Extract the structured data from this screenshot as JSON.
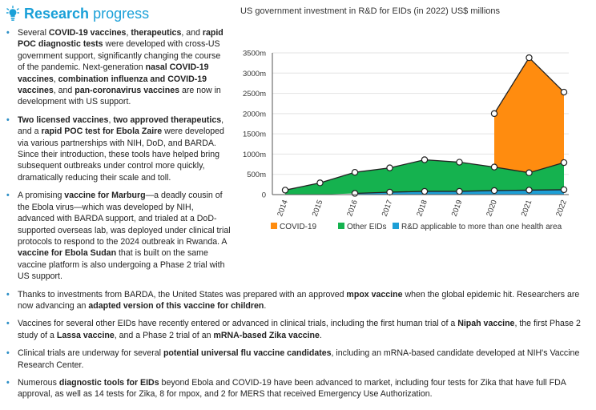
{
  "header": {
    "title_bold": "Research",
    "title_rest": " progress",
    "icon": "lightbulb-icon"
  },
  "bullets": [
    [
      {
        "t": "Several ",
        "b": false
      },
      {
        "t": "COVID-19 vaccines",
        "b": true
      },
      {
        "t": ", ",
        "b": false
      },
      {
        "t": "therapeutics",
        "b": true
      },
      {
        "t": ", and ",
        "b": false
      },
      {
        "t": "rapid POC diagnostic tests",
        "b": true
      },
      {
        "t": " were developed with cross-US government support, significantly changing the course of the pandemic. Next-generation ",
        "b": false
      },
      {
        "t": "nasal COVID-19 vaccines",
        "b": true
      },
      {
        "t": ", ",
        "b": false
      },
      {
        "t": "combination influenza and COVID-19 vaccines",
        "b": true
      },
      {
        "t": ", and ",
        "b": false
      },
      {
        "t": "pan-coronavirus vaccines",
        "b": true
      },
      {
        "t": " are now in development with US support.",
        "b": false
      }
    ],
    [
      {
        "t": "Two licensed vaccines",
        "b": true
      },
      {
        "t": ", ",
        "b": false
      },
      {
        "t": "two approved therapeutics",
        "b": true
      },
      {
        "t": ", and a ",
        "b": false
      },
      {
        "t": "rapid POC test for Ebola Zaire",
        "b": true
      },
      {
        "t": " were developed via various partnerships with NIH, DoD, and BARDA. Since their introduction, these tools have helped bring subsequent outbreaks under control more quickly, dramatically reducing their scale and toll.",
        "b": false
      }
    ],
    [
      {
        "t": "A promising ",
        "b": false
      },
      {
        "t": "vaccine for Marburg",
        "b": true
      },
      {
        "t": "—a deadly cousin of the Ebola virus—which was developed by NIH, advanced with BARDA support, and trialed at a DoD-supported overseas lab, was deployed under clinical trial protocols to respond to the 2024 outbreak in Rwanda. A ",
        "b": false
      },
      {
        "t": "vaccine for Ebola Sudan",
        "b": true
      },
      {
        "t": " that is built on the same vaccine platform is also undergoing a Phase 2 trial with US support.",
        "b": false
      }
    ],
    [
      {
        "t": "Thanks to investments from BARDA, the United States was prepared with an approved ",
        "b": false
      },
      {
        "t": "mpox vaccine",
        "b": true
      },
      {
        "t": " when the global epidemic hit. Researchers are now advancing an ",
        "b": false
      },
      {
        "t": "adapted version of this vaccine for children",
        "b": true
      },
      {
        "t": ".",
        "b": false
      }
    ],
    [
      {
        "t": "Vaccines for several other EIDs have recently entered or advanced in clinical trials, including the first human trial of a ",
        "b": false
      },
      {
        "t": "Nipah vaccine",
        "b": true
      },
      {
        "t": ", the first Phase 2 study of a ",
        "b": false
      },
      {
        "t": "Lassa vaccine",
        "b": true
      },
      {
        "t": ", and a Phase 2 trial of an ",
        "b": false
      },
      {
        "t": "mRNA-based Zika vaccine",
        "b": true
      },
      {
        "t": ".",
        "b": false
      }
    ],
    [
      {
        "t": "Clinical trials are underway for several ",
        "b": false
      },
      {
        "t": "potential universal flu vaccine candidates",
        "b": true
      },
      {
        "t": ", including an mRNA-based candidate developed at NIH's Vaccine Research Center.",
        "b": false
      }
    ],
    [
      {
        "t": "Numerous ",
        "b": false
      },
      {
        "t": "diagnostic tools for EIDs",
        "b": true
      },
      {
        "t": " beyond Ebola and COVID-19 have been advanced to market, including four tests for Zika that have full FDA approval, as well as 14 tests for Zika, 8 for mpox, and 2 for MERS that received Emergency Use Authorization.",
        "b": false
      }
    ]
  ],
  "chart_data": {
    "type": "area",
    "title": "US government investment in R&D for EIDs (in 2022) US$ millions",
    "x": [
      "2014",
      "2015",
      "2016",
      "2017",
      "2018",
      "2019",
      "2020",
      "2021",
      "2022"
    ],
    "y_ticks": [
      "0",
      "500m",
      "1000m",
      "1500m",
      "2000m",
      "2500m",
      "3000m",
      "3500m"
    ],
    "ylim": [
      0,
      3500
    ],
    "stacked": true,
    "series": [
      {
        "name": "R&D applicable to more than one health area",
        "color": "#1d9fd6",
        "values": [
          null,
          null,
          30,
          60,
          80,
          80,
          100,
          110,
          120
        ]
      },
      {
        "name": "Other EIDs",
        "color": "#15b24f",
        "values": [
          110,
          290,
          520,
          600,
          780,
          720,
          580,
          430,
          670
        ]
      },
      {
        "name": "COVID-19",
        "color": "#ff8c0f",
        "values": [
          null,
          null,
          null,
          null,
          null,
          null,
          1320,
          2840,
          1740
        ]
      }
    ],
    "legend_order": [
      "COVID-19",
      "Other EIDs",
      "R&D applicable to more than one health area"
    ],
    "legend_position": "bottom",
    "grid": "horizontal"
  }
}
